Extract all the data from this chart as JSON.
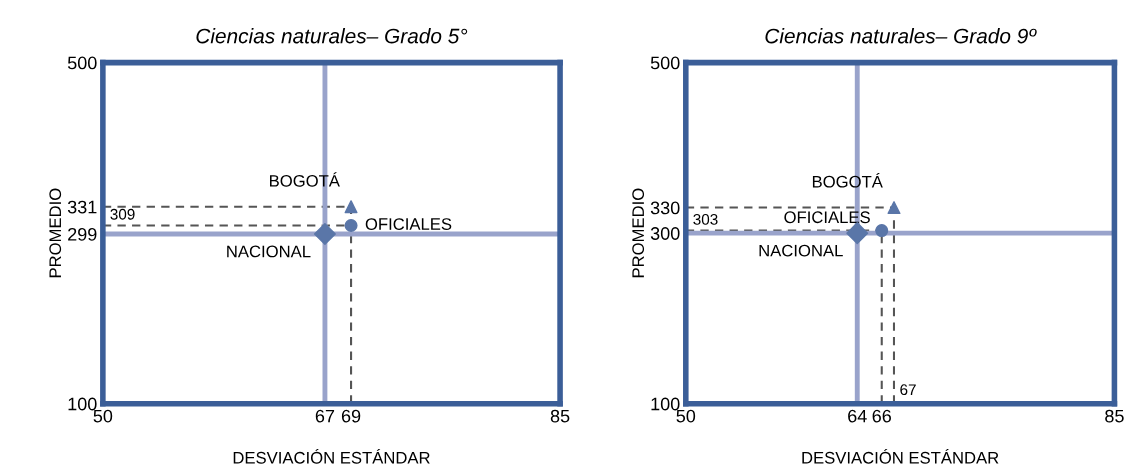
{
  "chart_data": [
    {
      "type": "scatter",
      "title": "Ciencias naturales– Grado 5°",
      "xlabel": "DESVIACIÓN ESTÁNDAR",
      "ylabel": "PROMEDIO",
      "xlim": [
        50,
        85
      ],
      "ylim": [
        100,
        500
      ],
      "xticks": [
        50,
        67,
        69,
        85
      ],
      "yticks": [
        100,
        299,
        331,
        500
      ],
      "grid": false,
      "legend": false,
      "series": [
        {
          "name": "BOGOTÁ",
          "color": "#5a76a8",
          "x": [
            69
          ],
          "values": [
            331
          ],
          "marker": "triangle"
        },
        {
          "name": "OFICIALES",
          "color": "#5a76a8",
          "x": [
            69
          ],
          "values": [
            309
          ],
          "marker": "circle"
        },
        {
          "name": "NACIONAL",
          "color": "#5a76a8",
          "x": [
            67
          ],
          "values": [
            299
          ],
          "marker": "diamond"
        }
      ],
      "ref_lines": [
        {
          "axis": "x",
          "value": 67,
          "color": "#99a3cb",
          "line_style": "solid"
        },
        {
          "axis": "y",
          "value": 299,
          "color": "#99a3cb",
          "line_style": "solid"
        },
        {
          "axis": "y",
          "value": 331,
          "color": "#555555",
          "line_style": "dashed"
        },
        {
          "axis": "y",
          "value": 309,
          "color": "#555555",
          "line_style": "dashed",
          "label": "309"
        },
        {
          "axis": "x",
          "value": 69,
          "color": "#555555",
          "line_style": "dashed"
        }
      ]
    },
    {
      "type": "scatter",
      "title": "Ciencias naturales– Grado 9º",
      "xlabel": "DESVIACIÓN ESTÁNDAR",
      "ylabel": "PROMEDIO",
      "xlim": [
        50,
        85
      ],
      "ylim": [
        100,
        500
      ],
      "xticks": [
        50,
        64,
        66,
        85
      ],
      "yticks": [
        100,
        300,
        330,
        500
      ],
      "grid": false,
      "legend": false,
      "series": [
        {
          "name": "BOGOTÁ",
          "color": "#5a76a8",
          "x": [
            67
          ],
          "values": [
            330
          ],
          "marker": "triangle"
        },
        {
          "name": "OFICIALES",
          "color": "#5a76a8",
          "x": [
            66
          ],
          "values": [
            303
          ],
          "marker": "circle"
        },
        {
          "name": "NACIONAL",
          "color": "#5a76a8",
          "x": [
            64
          ],
          "values": [
            300
          ],
          "marker": "diamond"
        }
      ],
      "ref_lines": [
        {
          "axis": "x",
          "value": 64,
          "color": "#99a3cb",
          "line_style": "solid"
        },
        {
          "axis": "y",
          "value": 300,
          "color": "#99a3cb",
          "line_style": "solid"
        },
        {
          "axis": "y",
          "value": 330,
          "color": "#555555",
          "line_style": "dashed"
        },
        {
          "axis": "y",
          "value": 303,
          "color": "#555555",
          "line_style": "dashed",
          "label": "303"
        },
        {
          "axis": "x",
          "value": 66,
          "color": "#555555",
          "line_style": "dashed"
        },
        {
          "axis": "x",
          "value": 67,
          "color": "#555555",
          "line_style": "dashed",
          "label": "67"
        }
      ]
    }
  ]
}
